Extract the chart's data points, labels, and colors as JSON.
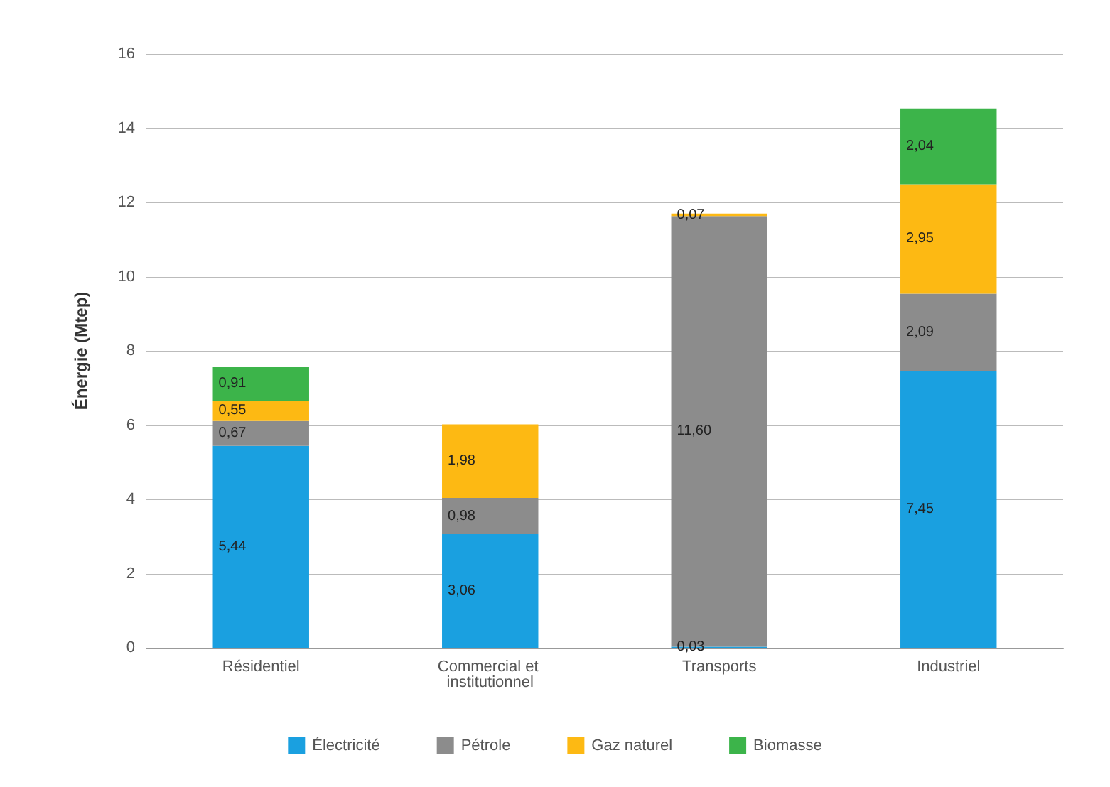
{
  "chart_data": {
    "type": "bar",
    "stacked": true,
    "ylabel": "Énergie (Mtep)",
    "categories": [
      "Résidentiel",
      "Commercial et institutionnel",
      "Transports",
      "Industriel"
    ],
    "series": [
      {
        "name": "Électricité",
        "color": "#1aa0e0",
        "values": [
          5.44,
          3.06,
          0.03,
          7.45
        ],
        "value_labels": [
          "5,44",
          "3,06",
          "0,03",
          "7,45"
        ]
      },
      {
        "name": "Pétrole",
        "color": "#8c8c8c",
        "values": [
          0.67,
          0.98,
          11.6,
          2.09
        ],
        "value_labels": [
          "0,67",
          "0,98",
          "11,60",
          "2,09"
        ]
      },
      {
        "name": "Gaz naturel",
        "color": "#fdb913",
        "values": [
          0.55,
          1.98,
          0.07,
          2.95
        ],
        "value_labels": [
          "0,55",
          "1,98",
          "0,07",
          "2,95"
        ]
      },
      {
        "name": "Biomasse",
        "color": "#3cb44a",
        "values": [
          0.91,
          null,
          null,
          2.04
        ],
        "value_labels": [
          "0,91",
          null,
          null,
          "2,04"
        ]
      }
    ],
    "ylim": [
      0,
      16
    ],
    "yticks": [
      0,
      2,
      4,
      6,
      8,
      10,
      12,
      14,
      16
    ],
    "grid": "y",
    "legend": "bottom"
  }
}
